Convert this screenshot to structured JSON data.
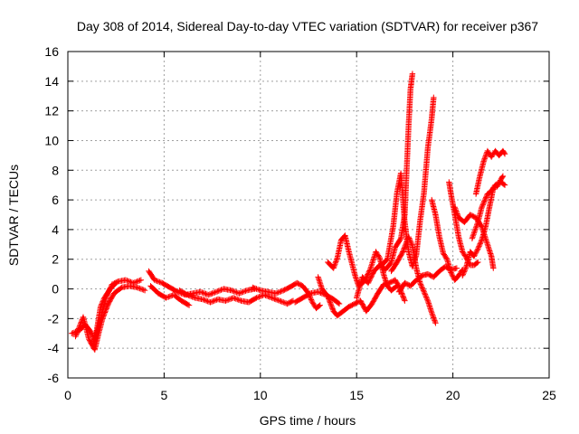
{
  "chart_data": {
    "type": "scatter",
    "title": "Day 308 of 2014, Sidereal Day-to-day VTEC variation (SDTVAR) for receiver p367",
    "xlabel": "GPS time / hours",
    "ylabel": "SDTVAR / TECUs",
    "xlim": [
      0,
      25
    ],
    "ylim": [
      -6,
      16
    ],
    "x_ticks": [
      0,
      5,
      10,
      15,
      20,
      25
    ],
    "y_ticks": [
      -6,
      -4,
      -2,
      0,
      2,
      4,
      6,
      8,
      10,
      12,
      14,
      16
    ],
    "grid": true,
    "marker": "plus",
    "color": "#ff0000",
    "tracks": [
      [
        [
          0.2,
          -3.0
        ],
        [
          0.6,
          -2.8
        ],
        [
          0.9,
          -2.4
        ],
        [
          1.2,
          -2.9
        ],
        [
          1.4,
          -3.5
        ],
        [
          1.6,
          -2.5
        ],
        [
          1.8,
          -1.5
        ],
        [
          2.0,
          -0.5
        ],
        [
          2.3,
          0.3
        ],
        [
          2.6,
          0.5
        ],
        [
          3.0,
          0.6
        ],
        [
          3.4,
          0.4
        ],
        [
          3.8,
          0.6
        ]
      ],
      [
        [
          0.4,
          -3.2
        ],
        [
          0.8,
          -1.9
        ],
        [
          1.1,
          -3.4
        ],
        [
          1.4,
          -4.1
        ],
        [
          1.6,
          -3.0
        ],
        [
          1.8,
          -2.0
        ],
        [
          2.1,
          -1.0
        ],
        [
          2.4,
          -0.3
        ],
        [
          2.8,
          0.1
        ],
        [
          3.2,
          0.2
        ],
        [
          3.6,
          0.1
        ],
        [
          4.0,
          -0.1
        ]
      ],
      [
        [
          1.3,
          -3.8
        ],
        [
          1.5,
          -2.8
        ],
        [
          1.7,
          -1.2
        ],
        [
          1.9,
          -0.6
        ],
        [
          2.2,
          0.0
        ],
        [
          2.5,
          0.4
        ]
      ],
      [
        [
          4.2,
          1.2
        ],
        [
          4.5,
          0.6
        ],
        [
          4.9,
          0.4
        ],
        [
          5.3,
          0.1
        ],
        [
          5.7,
          -0.2
        ],
        [
          6.1,
          -0.4
        ],
        [
          6.5,
          -0.3
        ],
        [
          6.9,
          -0.2
        ],
        [
          7.3,
          -0.4
        ],
        [
          7.7,
          -0.2
        ],
        [
          8.1,
          0.0
        ],
        [
          8.5,
          -0.1
        ],
        [
          8.9,
          -0.3
        ],
        [
          9.3,
          -0.1
        ],
        [
          9.7,
          0.0
        ]
      ],
      [
        [
          4.3,
          0.2
        ],
        [
          4.7,
          -0.3
        ],
        [
          5.1,
          -0.6
        ],
        [
          5.5,
          -0.4
        ],
        [
          5.9,
          -0.8
        ],
        [
          6.3,
          -1.1
        ]
      ],
      [
        [
          5.8,
          -0.1
        ],
        [
          6.2,
          -0.4
        ],
        [
          6.6,
          -0.6
        ],
        [
          7.0,
          -0.7
        ],
        [
          7.4,
          -0.9
        ],
        [
          7.8,
          -0.7
        ],
        [
          8.2,
          -0.8
        ],
        [
          8.6,
          -0.6
        ],
        [
          9.0,
          -0.8
        ],
        [
          9.4,
          -0.9
        ],
        [
          9.8,
          -0.6
        ],
        [
          10.2,
          -0.4
        ],
        [
          10.6,
          -0.6
        ],
        [
          11.0,
          -0.8
        ],
        [
          11.4,
          -1.0
        ],
        [
          11.7,
          -0.8
        ]
      ],
      [
        [
          9.6,
          0.1
        ],
        [
          10.0,
          -0.1
        ],
        [
          10.4,
          -0.2
        ],
        [
          10.8,
          -0.3
        ],
        [
          11.2,
          -0.1
        ],
        [
          11.5,
          0.1
        ],
        [
          11.9,
          0.4
        ],
        [
          12.2,
          0.2
        ],
        [
          12.5,
          -0.3
        ],
        [
          12.7,
          -0.9
        ],
        [
          12.9,
          -1.3
        ],
        [
          13.1,
          -1.1
        ]
      ],
      [
        [
          11.8,
          -0.9
        ],
        [
          12.2,
          -0.6
        ],
        [
          12.6,
          -0.3
        ],
        [
          13.0,
          -0.2
        ],
        [
          13.4,
          -0.4
        ],
        [
          13.8,
          -0.7
        ],
        [
          14.1,
          -1.0
        ]
      ],
      [
        [
          13.0,
          0.8
        ],
        [
          13.2,
          0.0
        ],
        [
          13.5,
          -0.5
        ],
        [
          13.8,
          -1.5
        ],
        [
          14.0,
          -1.8
        ],
        [
          14.3,
          -1.5
        ],
        [
          14.6,
          -1.2
        ],
        [
          14.9,
          -1.0
        ],
        [
          15.2,
          -0.8
        ],
        [
          15.5,
          -1.5
        ],
        [
          15.8,
          -1.0
        ],
        [
          16.1,
          -0.3
        ],
        [
          16.4,
          0.3
        ],
        [
          16.7,
          0.4
        ],
        [
          17.0,
          0.6
        ],
        [
          17.2,
          0.2
        ],
        [
          17.5,
          -0.8
        ]
      ],
      [
        [
          13.5,
          1.8
        ],
        [
          13.8,
          1.4
        ],
        [
          14.0,
          2.1
        ],
        [
          14.2,
          3.3
        ],
        [
          14.4,
          3.6
        ],
        [
          14.6,
          2.5
        ],
        [
          14.9,
          1.0
        ],
        [
          15.1,
          0.2
        ],
        [
          15.4,
          0.5
        ],
        [
          15.7,
          1.3
        ],
        [
          16.0,
          2.5
        ],
        [
          16.2,
          2.1
        ],
        [
          16.4,
          1.0
        ],
        [
          16.6,
          0.2
        ],
        [
          16.8,
          -0.1
        ],
        [
          17.1,
          0.2
        ]
      ],
      [
        [
          15.0,
          -0.6
        ],
        [
          15.3,
          0.8
        ],
        [
          15.6,
          0.4
        ],
        [
          15.9,
          1.2
        ],
        [
          16.2,
          1.6
        ],
        [
          16.5,
          1.3
        ],
        [
          16.8,
          1.8
        ],
        [
          17.0,
          2.8
        ],
        [
          17.3,
          3.4
        ],
        [
          17.5,
          5.0
        ],
        [
          17.6,
          8.0
        ],
        [
          17.7,
          11.0
        ],
        [
          17.8,
          13.5
        ],
        [
          17.9,
          14.5
        ]
      ],
      [
        [
          16.3,
          1.6
        ],
        [
          16.6,
          2.0
        ],
        [
          16.9,
          4.2
        ],
        [
          17.1,
          6.5
        ],
        [
          17.3,
          7.8
        ],
        [
          17.5,
          4.5
        ],
        [
          17.7,
          2.5
        ],
        [
          17.9,
          1.5
        ],
        [
          18.1,
          2.3
        ],
        [
          18.3,
          4.6
        ],
        [
          18.5,
          6.5
        ],
        [
          18.7,
          9.5
        ],
        [
          18.9,
          11.5
        ],
        [
          19.0,
          12.9
        ]
      ],
      [
        [
          16.8,
          1.2
        ],
        [
          17.1,
          1.8
        ],
        [
          17.4,
          2.5
        ],
        [
          17.7,
          3.5
        ],
        [
          17.9,
          2.9
        ],
        [
          18.1,
          1.4
        ],
        [
          18.3,
          0.4
        ],
        [
          18.5,
          -0.2
        ],
        [
          18.7,
          -0.8
        ],
        [
          18.9,
          -1.6
        ],
        [
          19.1,
          -2.3
        ]
      ],
      [
        [
          17.2,
          -0.2
        ],
        [
          17.5,
          0.4
        ],
        [
          17.8,
          0.2
        ],
        [
          18.1,
          0.6
        ],
        [
          18.4,
          0.9
        ],
        [
          18.7,
          1.0
        ],
        [
          19.0,
          0.8
        ],
        [
          19.3,
          1.2
        ],
        [
          19.6,
          1.5
        ],
        [
          19.9,
          1.3
        ],
        [
          20.2,
          1.4
        ]
      ],
      [
        [
          18.9,
          6.0
        ],
        [
          19.1,
          5.0
        ],
        [
          19.3,
          3.5
        ],
        [
          19.5,
          2.4
        ],
        [
          19.7,
          2.0
        ],
        [
          19.9,
          1.1
        ],
        [
          20.1,
          0.6
        ],
        [
          20.3,
          0.9
        ],
        [
          20.5,
          1.3
        ]
      ],
      [
        [
          19.8,
          7.2
        ],
        [
          19.9,
          6.4
        ],
        [
          20.1,
          5.0
        ],
        [
          20.3,
          3.5
        ],
        [
          20.5,
          2.5
        ],
        [
          20.7,
          2.1
        ],
        [
          20.9,
          1.6
        ],
        [
          21.1,
          1.6
        ],
        [
          21.3,
          1.8
        ]
      ],
      [
        [
          20.1,
          5.5
        ],
        [
          20.3,
          4.8
        ],
        [
          20.6,
          4.5
        ],
        [
          20.9,
          5.0
        ],
        [
          21.2,
          4.8
        ],
        [
          21.5,
          4.2
        ],
        [
          21.8,
          3.0
        ],
        [
          22.0,
          2.2
        ],
        [
          22.1,
          1.4
        ]
      ],
      [
        [
          20.5,
          0.9
        ],
        [
          20.7,
          1.5
        ],
        [
          20.9,
          2.5
        ],
        [
          21.1,
          2.2
        ],
        [
          21.3,
          2.7
        ],
        [
          21.5,
          3.3
        ],
        [
          21.7,
          4.2
        ],
        [
          21.9,
          5.5
        ],
        [
          22.1,
          6.8
        ],
        [
          22.3,
          6.9
        ],
        [
          22.5,
          7.4
        ],
        [
          22.6,
          7.6
        ]
      ],
      [
        [
          21.2,
          6.4
        ],
        [
          21.4,
          7.6
        ],
        [
          21.6,
          8.6
        ],
        [
          21.8,
          9.3
        ],
        [
          22.0,
          8.9
        ],
        [
          22.2,
          9.3
        ],
        [
          22.4,
          9.0
        ],
        [
          22.6,
          9.3
        ],
        [
          22.7,
          9.1
        ]
      ],
      [
        [
          21.0,
          3.4
        ],
        [
          21.3,
          4.5
        ],
        [
          21.5,
          5.5
        ],
        [
          21.8,
          6.4
        ],
        [
          22.0,
          6.6
        ],
        [
          22.2,
          7.0
        ],
        [
          22.5,
          7.2
        ],
        [
          22.7,
          7.0
        ]
      ]
    ]
  }
}
